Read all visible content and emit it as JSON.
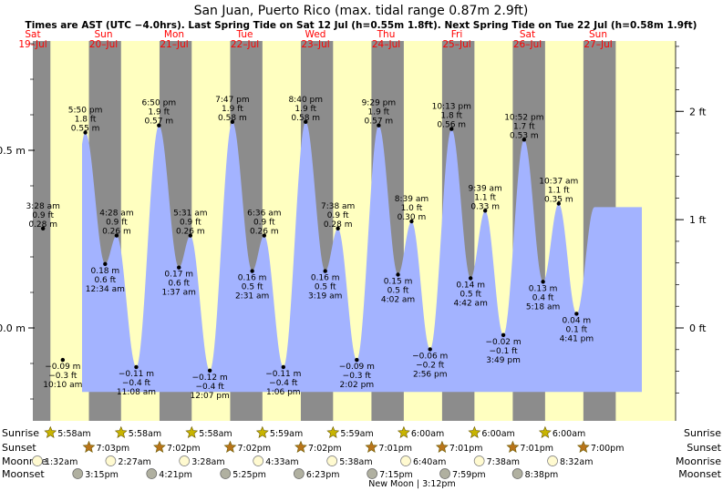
{
  "chart_data": {
    "type": "area",
    "title": "San Juan, Puerto Rico (max. tidal range 0.87m 2.9ft)",
    "subtitle": "Times are AST (UTC −4.0hrs). Last Spring Tide on Sat 12 Jul (h=0.55m 1.8ft). Next Spring Tide on Tue 22 Jul (h=0.58m 1.9ft)",
    "ylim": [
      -0.23,
      0.8
    ],
    "left_ticks": [
      {
        "value": 0.5,
        "label": "0.5 m"
      },
      {
        "value": 0.0,
        "label": "0.0 m"
      }
    ],
    "right_ticks": [
      {
        "value": 0.6096,
        "label": "2 ft"
      },
      {
        "value": 0.3048,
        "label": "1 ft"
      },
      {
        "value": 0.0,
        "label": "0 ft"
      }
    ],
    "days": [
      {
        "dow": "Sat",
        "date": "19–Jul"
      },
      {
        "dow": "Sun",
        "date": "20–Jul"
      },
      {
        "dow": "Mon",
        "date": "21–Jul"
      },
      {
        "dow": "Tue",
        "date": "22–Jul"
      },
      {
        "dow": "Wed",
        "date": "23–Jul"
      },
      {
        "dow": "Thu",
        "date": "24–Jul"
      },
      {
        "dow": "Fri",
        "date": "25–Jul"
      },
      {
        "dow": "Sat",
        "date": "26–Jul"
      },
      {
        "dow": "Sun",
        "date": "27–Jul"
      }
    ],
    "tides": [
      {
        "day": 0,
        "time": "3:28 am",
        "m": 0.28,
        "ft": "0.9 ft",
        "mstr": "0.28 m",
        "type": "high"
      },
      {
        "day": 0,
        "time": "10:10 am",
        "m": -0.09,
        "ft": "−0.3 ft",
        "mstr": "−0.09 m",
        "type": "low"
      },
      {
        "day": 0,
        "time": "5:50 pm",
        "m": 0.55,
        "ft": "1.8 ft",
        "mstr": "0.55 m",
        "type": "high"
      },
      {
        "day": 1,
        "time": "12:34 am",
        "m": 0.18,
        "ft": "0.6 ft",
        "mstr": "0.18 m",
        "type": "low"
      },
      {
        "day": 1,
        "time": "4:28 am",
        "m": 0.26,
        "ft": "0.9 ft",
        "mstr": "0.26 m",
        "type": "high"
      },
      {
        "day": 1,
        "time": "11:08 am",
        "m": -0.11,
        "ft": "−0.4 ft",
        "mstr": "−0.11 m",
        "type": "low"
      },
      {
        "day": 1,
        "time": "6:50 pm",
        "m": 0.57,
        "ft": "1.9 ft",
        "mstr": "0.57 m",
        "type": "high"
      },
      {
        "day": 2,
        "time": "1:37 am",
        "m": 0.17,
        "ft": "0.6 ft",
        "mstr": "0.17 m",
        "type": "low"
      },
      {
        "day": 2,
        "time": "5:31 am",
        "m": 0.26,
        "ft": "0.9 ft",
        "mstr": "0.26 m",
        "type": "high"
      },
      {
        "day": 2,
        "time": "12:07 pm",
        "m": -0.12,
        "ft": "−0.4 ft",
        "mstr": "−0.12 m",
        "type": "low"
      },
      {
        "day": 2,
        "time": "7:47 pm",
        "m": 0.58,
        "ft": "1.9 ft",
        "mstr": "0.58 m",
        "type": "high"
      },
      {
        "day": 3,
        "time": "2:31 am",
        "m": 0.16,
        "ft": "0.5 ft",
        "mstr": "0.16 m",
        "type": "low"
      },
      {
        "day": 3,
        "time": "6:36 am",
        "m": 0.26,
        "ft": "0.9 ft",
        "mstr": "0.26 m",
        "type": "high"
      },
      {
        "day": 3,
        "time": "1:06 pm",
        "m": -0.11,
        "ft": "−0.4 ft",
        "mstr": "−0.11 m",
        "type": "low"
      },
      {
        "day": 3,
        "time": "8:40 pm",
        "m": 0.58,
        "ft": "1.9 ft",
        "mstr": "0.58 m",
        "type": "high"
      },
      {
        "day": 4,
        "time": "3:19 am",
        "m": 0.16,
        "ft": "0.5 ft",
        "mstr": "0.16 m",
        "type": "low"
      },
      {
        "day": 4,
        "time": "7:38 am",
        "m": 0.28,
        "ft": "0.9 ft",
        "mstr": "0.28 m",
        "type": "high"
      },
      {
        "day": 4,
        "time": "2:02 pm",
        "m": -0.09,
        "ft": "−0.3 ft",
        "mstr": "−0.09 m",
        "type": "low"
      },
      {
        "day": 4,
        "time": "9:29 pm",
        "m": 0.57,
        "ft": "1.9 ft",
        "mstr": "0.57 m",
        "type": "high"
      },
      {
        "day": 5,
        "time": "4:02 am",
        "m": 0.15,
        "ft": "0.5 ft",
        "mstr": "0.15 m",
        "type": "low"
      },
      {
        "day": 5,
        "time": "8:39 am",
        "m": 0.3,
        "ft": "1.0 ft",
        "mstr": "0.30 m",
        "type": "high"
      },
      {
        "day": 5,
        "time": "2:56 pm",
        "m": -0.06,
        "ft": "−0.2 ft",
        "mstr": "−0.06 m",
        "type": "low"
      },
      {
        "day": 5,
        "time": "10:13 pm",
        "m": 0.56,
        "ft": "1.8 ft",
        "mstr": "0.56 m",
        "type": "high"
      },
      {
        "day": 6,
        "time": "4:42 am",
        "m": 0.14,
        "ft": "0.5 ft",
        "mstr": "0.14 m",
        "type": "low"
      },
      {
        "day": 6,
        "time": "9:39 am",
        "m": 0.33,
        "ft": "1.1 ft",
        "mstr": "0.33 m",
        "type": "high"
      },
      {
        "day": 6,
        "time": "3:49 pm",
        "m": -0.02,
        "ft": "−0.1 ft",
        "mstr": "−0.02 m",
        "type": "low"
      },
      {
        "day": 6,
        "time": "10:52 pm",
        "m": 0.53,
        "ft": "1.7 ft",
        "mstr": "0.53 m",
        "type": "high"
      },
      {
        "day": 7,
        "time": "5:18 am",
        "m": 0.13,
        "ft": "0.4 ft",
        "mstr": "0.13 m",
        "type": "low"
      },
      {
        "day": 7,
        "time": "10:37 am",
        "m": 0.35,
        "ft": "1.1 ft",
        "mstr": "0.35 m",
        "type": "high"
      },
      {
        "day": 7,
        "time": "4:41 pm",
        "m": 0.04,
        "ft": "0.1 ft",
        "mstr": "0.04 m",
        "type": "low"
      }
    ],
    "sun_moon": [
      {
        "day": 0,
        "sunrise": "5:58am",
        "sunset": "7:03pm",
        "moonrise": "1:32am",
        "moonset": "3:15pm"
      },
      {
        "day": 1,
        "sunrise": "5:58am",
        "sunset": "7:02pm",
        "moonrise": "2:27am",
        "moonset": "4:21pm"
      },
      {
        "day": 2,
        "sunrise": "5:58am",
        "sunset": "7:02pm",
        "moonrise": "3:28am",
        "moonset": "5:25pm"
      },
      {
        "day": 3,
        "sunrise": "5:59am",
        "sunset": "7:02pm",
        "moonrise": "4:33am",
        "moonset": "6:23pm"
      },
      {
        "day": 4,
        "sunrise": "5:59am",
        "sunset": "7:01pm",
        "moonrise": "5:38am",
        "moonset": "7:15pm"
      },
      {
        "day": 5,
        "sunrise": "6:00am",
        "sunset": "7:01pm",
        "moonrise": "6:40am",
        "moonset": "7:59pm"
      },
      {
        "day": 6,
        "sunrise": "6:00am",
        "sunset": "7:01pm",
        "moonrise": "7:38am",
        "moonset": "8:38pm"
      },
      {
        "day": 7,
        "sunrise": "6:00am",
        "sunset": "7:00pm",
        "moonrise": "8:32am",
        "moonset": ""
      }
    ],
    "row_labels": {
      "sunrise": "Sunrise",
      "sunset": "Sunset",
      "moonrise": "Moonrise",
      "moonset": "Moonset"
    },
    "moon_phase": "New Moon | 3:12pm",
    "colors": {
      "night": "#8c8c8c",
      "day": "#ffffc0",
      "tide_fill": "#a3b3ff",
      "day_label": "#ff0000",
      "sun": "#c8b400",
      "sunset": "#b8741a",
      "moonrise": "#fffad0",
      "moonset": "#b0b0a0"
    }
  }
}
